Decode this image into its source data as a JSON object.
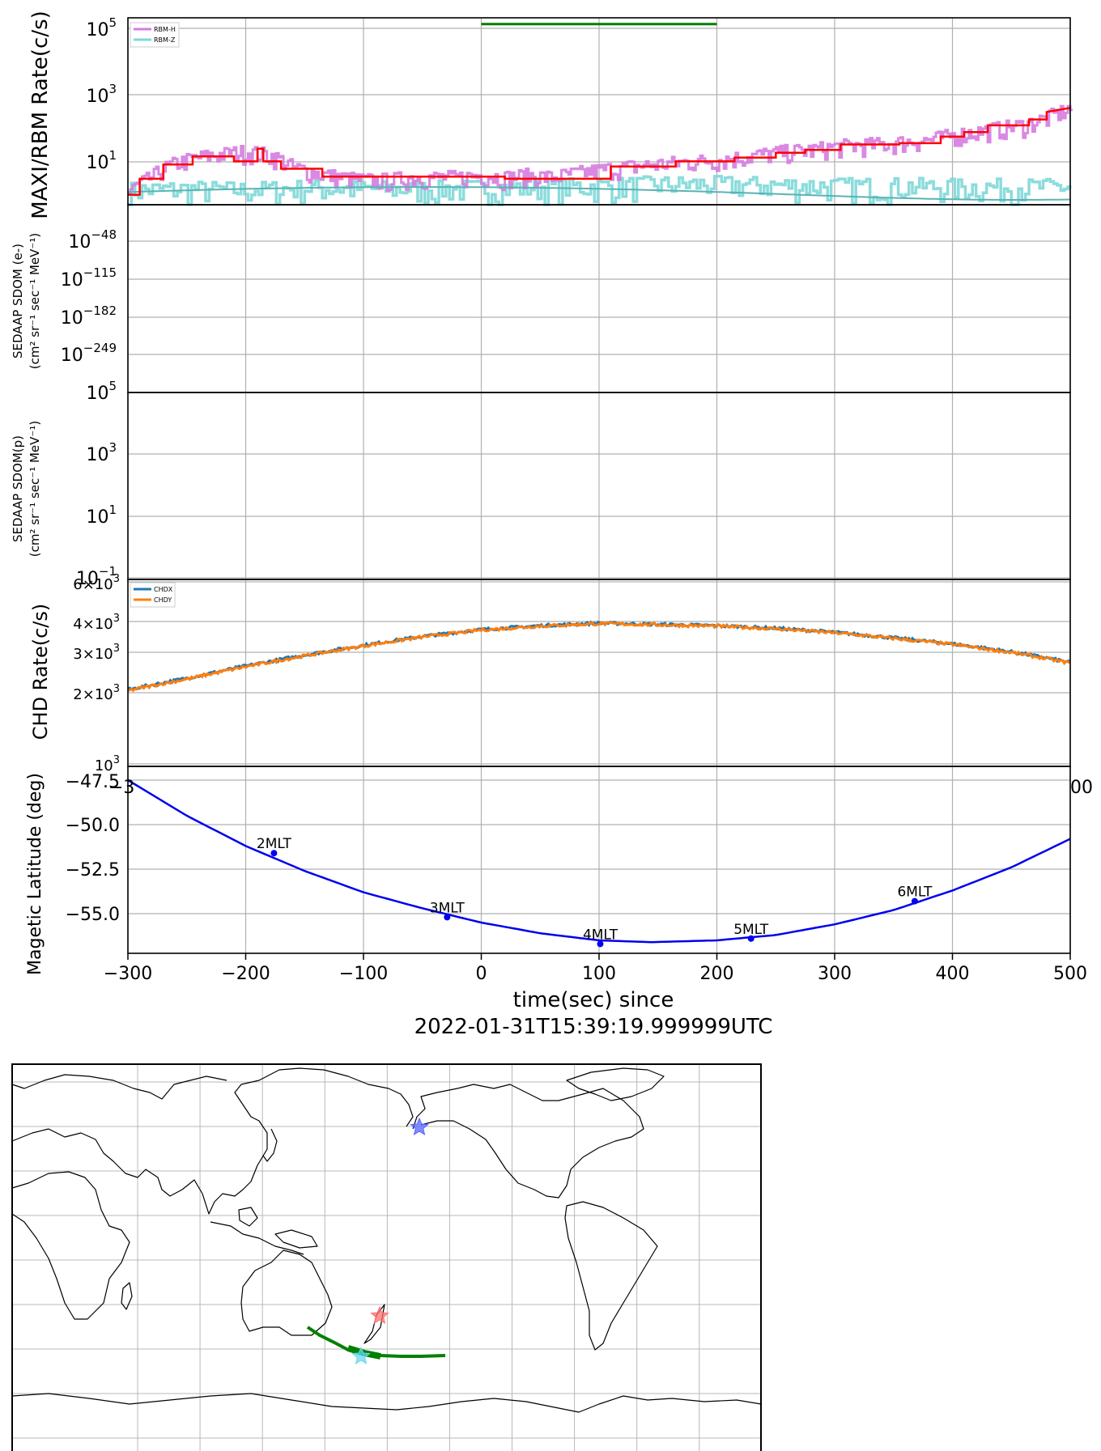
{
  "figure": {
    "time_axis": {
      "xlabel": "time(sec) since",
      "reference_time": "2022-01-31T15:39:19.999999UTC",
      "xlim": [
        -300,
        500
      ],
      "ticks": [
        -300,
        -200,
        -100,
        0,
        100,
        200,
        300,
        400,
        500
      ],
      "tick_labels": [
        "−300",
        "−200",
        "−100",
        "0",
        "100",
        "200",
        "300",
        "400",
        "500"
      ],
      "partial_labels": [
        "−3",
        "00"
      ]
    },
    "colors": {
      "rbm_h": "#d67ce0",
      "rbm_z": "#7fd8d8",
      "rbm_fit": "#ff0000",
      "chdx": "#1f77b4",
      "chdy": "#ff7f0e",
      "latitude": "#0000ee",
      "track": "#008000"
    }
  },
  "chart_data": [
    {
      "type": "line",
      "panel": "maxi-rbm",
      "ylabel": "MAXI/RBM Rate(c/s)",
      "yscale": "log",
      "ylim": [
        0.5,
        200000
      ],
      "yticks": [
        {
          "base": "10",
          "exp": "5",
          "value": 100000
        },
        {
          "base": "10",
          "exp": "3",
          "value": 1000
        },
        {
          "base": "10",
          "exp": "1",
          "value": 10
        }
      ],
      "legend": {
        "position": "top-left",
        "entries": [
          {
            "name": "RBM-H",
            "color": "#d67ce0"
          },
          {
            "name": "RBM-Z",
            "color": "#7fd8d8"
          }
        ]
      },
      "series": [
        {
          "name": "RBM-H",
          "color": "#d67ce0",
          "x": [
            -300,
            -280,
            -260,
            -240,
            -220,
            -200,
            -180,
            -160,
            -140,
            -120,
            -100,
            -80,
            -60,
            -40,
            -20,
            0,
            20,
            40,
            60,
            80,
            100,
            120,
            140,
            160,
            180,
            200,
            220,
            240,
            260,
            280,
            300,
            320,
            340,
            360,
            380,
            400,
            420,
            440,
            460,
            480,
            500
          ],
          "y": [
            1,
            3,
            8,
            12,
            15,
            18,
            14,
            6,
            4,
            3,
            2.5,
            2.5,
            3,
            3,
            3,
            3.5,
            3,
            3.5,
            3,
            4,
            5,
            6,
            7,
            8,
            9,
            10,
            12,
            15,
            18,
            20,
            25,
            28,
            30,
            35,
            40,
            55,
            70,
            90,
            110,
            180,
            350
          ]
        },
        {
          "name": "RBM-Z",
          "color": "#7fd8d8",
          "x": [
            -300,
            -250,
            -200,
            -150,
            -100,
            -50,
            0,
            50,
            100,
            150,
            200,
            250,
            300,
            350,
            400,
            450,
            500
          ],
          "y": [
            1.2,
            1.3,
            1.2,
            1.4,
            1.3,
            1.3,
            1.4,
            1.5,
            1.6,
            1.8,
            1.8,
            1.7,
            1.6,
            1.6,
            1.5,
            1.5,
            1.5
          ]
        },
        {
          "name": "",
          "color": "#ff0000",
          "x": [
            -300,
            -290,
            -290,
            -270,
            -270,
            -245,
            -245,
            -210,
            -210,
            -190,
            -190,
            -185,
            -185,
            -170,
            -170,
            -135,
            -135,
            20,
            20,
            110,
            110,
            165,
            165,
            215,
            215,
            250,
            250,
            275,
            275,
            305,
            305,
            355,
            355,
            390,
            390,
            410,
            410,
            430,
            430,
            465,
            465,
            480,
            480,
            500
          ],
          "y": [
            1,
            1,
            3,
            3,
            8,
            8,
            14,
            14,
            10,
            10,
            24,
            24,
            10,
            10,
            6,
            6,
            3.5,
            3.5,
            3,
            3,
            7,
            7,
            10,
            10,
            13,
            13,
            18,
            18,
            22,
            22,
            32,
            32,
            35,
            35,
            55,
            55,
            75,
            75,
            120,
            120,
            180,
            180,
            300,
            400
          ]
        }
      ],
      "annotations": [
        {
          "type": "hline",
          "x": [
            0,
            200
          ],
          "y": 130000,
          "color": "#008000"
        }
      ]
    },
    {
      "type": "line",
      "panel": "sedaap-electron",
      "ylabel": [
        "SEDAAP SDOM (e-)",
        "(cm² sr⁻¹ sec⁻¹ MeV⁻¹)"
      ],
      "yscale": "log",
      "yticks": [
        {
          "base": "10",
          "exp": "−48"
        },
        {
          "base": "10",
          "exp": "−115"
        },
        {
          "base": "10",
          "exp": "−182"
        },
        {
          "base": "10",
          "exp": "−249"
        }
      ],
      "series": []
    },
    {
      "type": "line",
      "panel": "sedaap-proton",
      "ylabel": [
        "SEDAAP SDOM(p)",
        "(cm² sr⁻¹ sec⁻¹ MeV⁻¹)"
      ],
      "yscale": "log",
      "ylim": [
        0.1,
        100000
      ],
      "yticks": [
        {
          "base": "10",
          "exp": "5",
          "value": 100000
        },
        {
          "base": "10",
          "exp": "3",
          "value": 1000
        },
        {
          "base": "10",
          "exp": "1",
          "value": 10
        },
        {
          "base": "10",
          "exp": "−1",
          "value": 0.1
        }
      ],
      "series": []
    },
    {
      "type": "line",
      "panel": "chd",
      "ylabel": "CHD Rate(c/s)",
      "yscale": "log",
      "ylim": [
        1000,
        6000
      ],
      "yticks": [
        {
          "mant": "6",
          "base": "10",
          "exp": "3",
          "value": 6000
        },
        {
          "mant": "4",
          "base": "10",
          "exp": "3",
          "value": 4000
        },
        {
          "mant": "3",
          "base": "10",
          "exp": "3",
          "value": 3000
        },
        {
          "mant": "2",
          "base": "10",
          "exp": "3",
          "value": 2000
        },
        {
          "mant": "",
          "base": "10",
          "exp": "3",
          "value": 1000
        }
      ],
      "legend": {
        "position": "top-left",
        "entries": [
          {
            "name": "CHDX",
            "color": "#1f77b4"
          },
          {
            "name": "CHDY",
            "color": "#ff7f0e"
          }
        ]
      },
      "series": [
        {
          "name": "CHDX",
          "color": "#1f77b4",
          "x": [
            -300,
            -250,
            -200,
            -150,
            -100,
            -50,
            0,
            50,
            100,
            150,
            200,
            250,
            300,
            350,
            400,
            450,
            500
          ],
          "y": [
            2050,
            2300,
            2600,
            2900,
            3200,
            3500,
            3750,
            3900,
            4000,
            3950,
            3900,
            3800,
            3650,
            3450,
            3250,
            3000,
            2700
          ]
        },
        {
          "name": "CHDY",
          "color": "#ff7f0e",
          "x": [
            -300,
            -250,
            -200,
            -150,
            -100,
            -50,
            0,
            50,
            100,
            150,
            200,
            250,
            300,
            350,
            400,
            450,
            500
          ],
          "y": [
            2030,
            2280,
            2580,
            2880,
            3180,
            3480,
            3730,
            3880,
            3980,
            3930,
            3880,
            3780,
            3630,
            3430,
            3230,
            2980,
            2680
          ]
        }
      ]
    },
    {
      "type": "line",
      "panel": "magnetic-latitude",
      "ylabel": "Magetic Latitude  (deg)",
      "ylim": [
        -56.8,
        -47.3
      ],
      "yticks": [
        {
          "label": "−47.5",
          "value": -47.5
        },
        {
          "label": "−50.0",
          "value": -50.0
        },
        {
          "label": "−52.5",
          "value": -52.5
        },
        {
          "label": "−55.0",
          "value": -55.0
        }
      ],
      "series": [
        {
          "name": "",
          "color": "#0000ee",
          "x": [
            -300,
            -250,
            -200,
            -150,
            -100,
            -50,
            0,
            50,
            100,
            145,
            200,
            250,
            300,
            350,
            400,
            450,
            500
          ],
          "y": [
            -47.5,
            -49.5,
            -51.2,
            -52.6,
            -53.8,
            -54.7,
            -55.5,
            -56.1,
            -56.5,
            -56.6,
            -56.5,
            -56.2,
            -55.6,
            -54.8,
            -53.7,
            -52.4,
            -50.8
          ]
        }
      ],
      "annotations": [
        {
          "label": "2MLT",
          "x": -176,
          "y": -51.6
        },
        {
          "label": "3MLT",
          "x": -29,
          "y": -55.2
        },
        {
          "label": "4MLT",
          "x": 101,
          "y": -56.7
        },
        {
          "label": "5MLT",
          "x": 229,
          "y": -56.4
        },
        {
          "label": "6MLT",
          "x": 368,
          "y": -54.3
        }
      ]
    }
  ],
  "map": {
    "projection": "PlateCarree, centered on 180°",
    "gridlines": true,
    "markers": [
      {
        "label": "",
        "symbol": "star",
        "color": "#5566ff",
        "lon": -160,
        "lat": 62
      },
      {
        "label": "",
        "symbol": "star",
        "color": "#ff7070",
        "lon": 175,
        "lat": -40
      },
      {
        "label": "",
        "symbol": "star",
        "color": "#66d8ee",
        "lon": 170,
        "lat": -53
      }
    ],
    "track": {
      "color": "#008000",
      "lon": [
        152,
        158,
        163,
        168,
        172,
        176,
        180,
        -175,
        -170,
        -165,
        -160,
        -155,
        -150,
        -146
      ],
      "lat": [
        -44,
        -47,
        -50,
        -51.5,
        -52.5,
        -53.5,
        -54.5,
        -55.5,
        -56.5,
        -57,
        -57.2,
        -57.2,
        -57,
        -56.8
      ]
    }
  }
}
